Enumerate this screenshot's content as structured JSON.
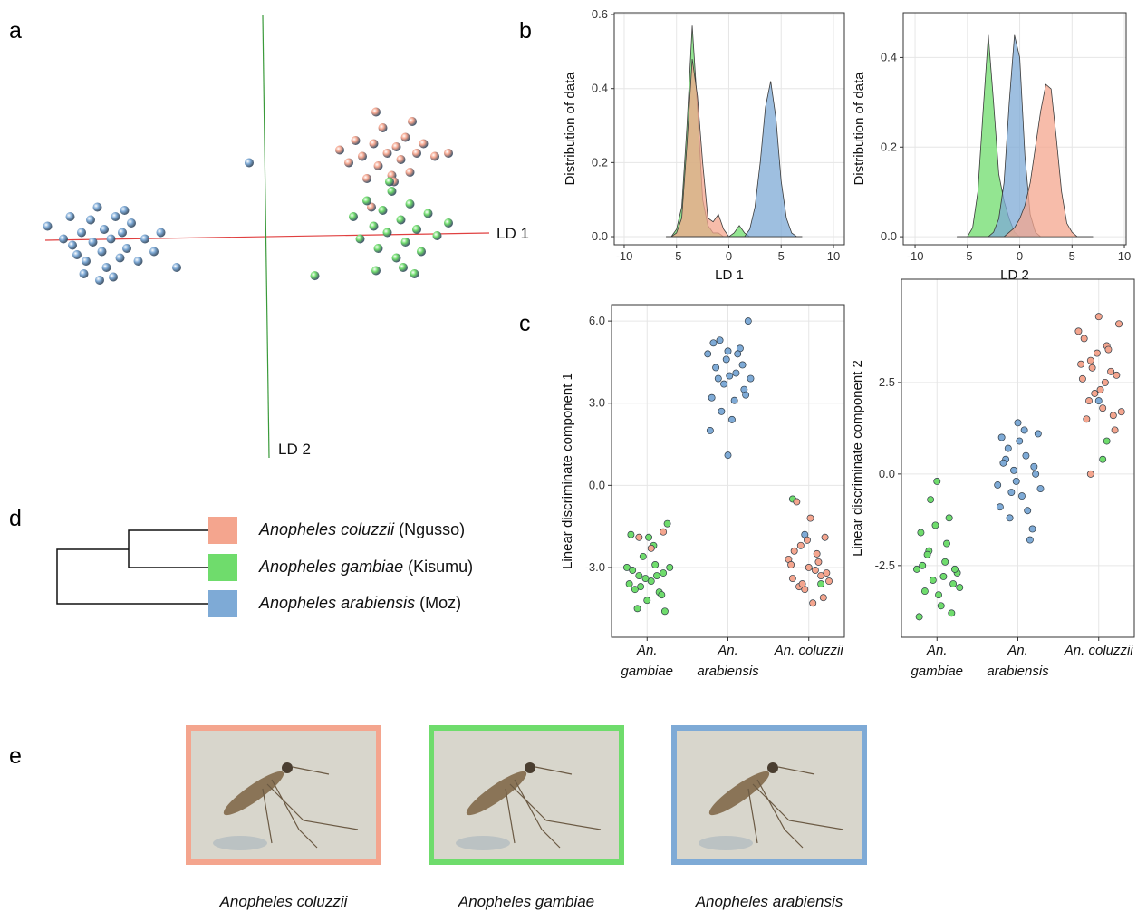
{
  "panel_labels": [
    "a",
    "b",
    "c",
    "d",
    "e"
  ],
  "chart_data": [
    {
      "type": "scatter",
      "xlabel": "LD 1",
      "ylabel": "LD 2",
      "xlim": [
        -10,
        10
      ],
      "ylim": [
        -6,
        8
      ],
      "series": [
        {
          "color": "#7eaad6",
          "x": [
            -9.5,
            -8.8,
            -8.5,
            -8.2,
            -8.0,
            -7.8,
            -7.6,
            -7.5,
            -7.3,
            -7.1,
            -7.0,
            -6.9,
            -6.7,
            -6.5,
            -6.3,
            -6.2,
            -6.0,
            -5.8,
            -5.5,
            -5.2,
            -4.8,
            -4.5,
            -7.9,
            -7.2,
            -6.6,
            -8.4,
            -6.1,
            -3.8,
            -0.6
          ],
          "values": [
            1.3,
            0.9,
            1.6,
            0.4,
            1.1,
            0.2,
            1.5,
            0.8,
            1.9,
            0.5,
            1.2,
            0.0,
            0.9,
            1.6,
            0.3,
            1.1,
            0.6,
            1.4,
            0.2,
            0.9,
            0.5,
            1.1,
            -0.2,
            -0.4,
            -0.3,
            0.7,
            1.8,
            0.0,
            3.3
          ]
        },
        {
          "color": "#f4a58e",
          "x": [
            3.4,
            3.8,
            4.1,
            4.4,
            4.6,
            4.9,
            5.1,
            5.3,
            5.5,
            5.7,
            5.9,
            6.1,
            6.3,
            6.5,
            6.8,
            7.1,
            7.6,
            8.2,
            5.0,
            5.8,
            6.6,
            4.8
          ],
          "values": [
            3.7,
            3.3,
            4.0,
            3.5,
            2.8,
            3.9,
            3.2,
            4.4,
            3.6,
            2.9,
            3.8,
            3.4,
            4.1,
            3.0,
            3.6,
            3.9,
            3.5,
            3.6,
            4.9,
            2.7,
            4.6,
            1.9
          ]
        },
        {
          "color": "#6fdc6c",
          "x": [
            2.3,
            4.0,
            4.3,
            4.6,
            4.9,
            5.1,
            5.3,
            5.5,
            5.7,
            5.9,
            6.1,
            6.3,
            6.5,
            6.8,
            7.0,
            7.3,
            7.7,
            8.2,
            5.0,
            5.6,
            6.2,
            6.7
          ],
          "values": [
            -0.26,
            1.6,
            0.9,
            2.1,
            1.3,
            0.6,
            1.8,
            1.1,
            2.4,
            0.3,
            1.5,
            0.8,
            2.0,
            1.2,
            0.5,
            1.7,
            1.0,
            1.4,
            -0.1,
            2.7,
            0.0,
            -0.2
          ]
        }
      ]
    },
    {
      "type": "density",
      "xlabel": "LD 1",
      "ylabel": "Distribution of data",
      "grid": true,
      "xlim": [
        -10.95,
        11.04
      ],
      "ylim": [
        -0.022,
        0.605
      ],
      "xticks": [
        -10,
        -5,
        0,
        5,
        10
      ],
      "yticks": [
        {
          "value": 0,
          "label": "0.0"
        },
        0.2,
        0.4,
        0.6
      ],
      "x": [
        -6,
        -5.5,
        -5,
        -4.5,
        -4,
        -3.5,
        -3,
        -2.5,
        -2,
        -1.5,
        -1,
        -0.5,
        0,
        0.5,
        1,
        1.5,
        2,
        2.5,
        3,
        3.5,
        4,
        4.5,
        5,
        5.5,
        6,
        6.5,
        7
      ],
      "series": [
        {
          "color": "#6fdc6c",
          "values": [
            0,
            0,
            0.02,
            0.08,
            0.3,
            0.57,
            0.35,
            0.1,
            0.03,
            0.01,
            0.01,
            0,
            0,
            0.01,
            0.03,
            0.01,
            0,
            0,
            0,
            0,
            0,
            0,
            0,
            0,
            0,
            0,
            0
          ]
        },
        {
          "color": "#f4a58e",
          "values": [
            0,
            0,
            0.01,
            0.05,
            0.25,
            0.48,
            0.38,
            0.2,
            0.05,
            0.04,
            0.06,
            0.02,
            0,
            0,
            0,
            0,
            0,
            0,
            0,
            0,
            0,
            0,
            0,
            0,
            0,
            0,
            0
          ]
        },
        {
          "color": "#7eaad6",
          "values": [
            0,
            0,
            0,
            0,
            0,
            0,
            0,
            0,
            0,
            0,
            0,
            0,
            0,
            0,
            0,
            0,
            0.02,
            0.08,
            0.2,
            0.35,
            0.42,
            0.32,
            0.15,
            0.05,
            0.01,
            0,
            0
          ]
        }
      ]
    },
    {
      "type": "density",
      "xlabel": "LD 2",
      "ylabel": "Distribution of data",
      "grid": true,
      "xlim": [
        -11.13,
        10.17
      ],
      "ylim": [
        -0.018,
        0.5
      ],
      "xticks": [
        -10,
        -5,
        0,
        5,
        10
      ],
      "yticks": [
        {
          "value": 0,
          "label": "0.0"
        },
        0.2,
        0.4
      ],
      "x": [
        -6,
        -5.5,
        -5,
        -4.5,
        -4,
        -3.5,
        -3,
        -2.5,
        -2,
        -1.5,
        -1,
        -0.5,
        0,
        0.5,
        1,
        1.5,
        2,
        2.5,
        3,
        3.5,
        4,
        4.5,
        5,
        5.5,
        6,
        6.5,
        7
      ],
      "series": [
        {
          "color": "#6fdc6c",
          "values": [
            0,
            0,
            0,
            0.02,
            0.1,
            0.28,
            0.45,
            0.3,
            0.14,
            0.08,
            0.04,
            0.01,
            0,
            0,
            0,
            0,
            0,
            0,
            0,
            0,
            0,
            0,
            0,
            0,
            0,
            0,
            0
          ]
        },
        {
          "color": "#7eaad6",
          "values": [
            0,
            0,
            0,
            0,
            0,
            0,
            0,
            0.01,
            0.04,
            0.12,
            0.3,
            0.45,
            0.4,
            0.18,
            0.05,
            0.01,
            0,
            0,
            0,
            0,
            0,
            0,
            0,
            0,
            0,
            0,
            0
          ]
        },
        {
          "color": "#f4a58e",
          "values": [
            0,
            0,
            0,
            0,
            0,
            0,
            0,
            0,
            0,
            0,
            0.01,
            0.02,
            0.04,
            0.07,
            0.12,
            0.2,
            0.28,
            0.34,
            0.33,
            0.22,
            0.1,
            0.03,
            0.01,
            0,
            0,
            0,
            0
          ]
        }
      ]
    },
    {
      "type": "strip",
      "ylabel": "Linear discriminate component 1",
      "grid": true,
      "xlim": [
        0.56,
        3.44
      ],
      "ylim": [
        -5.55,
        6.6
      ],
      "xticks": [
        {
          "value": 1,
          "label": "An. gambiae"
        },
        {
          "value": 2,
          "label": "An. arabiensis"
        },
        {
          "value": 3,
          "label": "An. coluzzii"
        }
      ],
      "yticks": [
        {
          "value": -3,
          "label": "-3.0"
        },
        {
          "value": 0,
          "label": "0.0"
        },
        {
          "value": 3,
          "label": "3.0"
        },
        {
          "value": 6,
          "label": "6.0"
        }
      ],
      "series": [
        {
          "color": "#6fdc6c",
          "x": [
            0.75,
            0.8,
            0.85,
            0.9,
            0.95,
            1.0,
            1.05,
            1.1,
            1.15,
            1.2,
            1.25,
            0.78,
            0.88,
            0.98,
            1.08,
            1.18,
            0.82,
            0.92,
            1.02,
            1.12,
            1.22,
            1.28,
            2.8,
            3.15
          ],
          "values": [
            -3.0,
            -1.8,
            -3.8,
            -3.3,
            -2.6,
            -4.2,
            -3.5,
            -2.9,
            -3.9,
            -3.2,
            -1.4,
            -3.6,
            -4.5,
            -3.4,
            -2.2,
            -4.0,
            -3.1,
            -3.7,
            -1.9,
            -3.3,
            -4.6,
            -3.0,
            -0.5,
            -3.6
          ]
        },
        {
          "color": "#7eaad6",
          "x": [
            1.75,
            1.8,
            1.85,
            1.9,
            1.95,
            2.0,
            2.05,
            2.1,
            2.15,
            2.2,
            2.25,
            1.78,
            1.88,
            1.98,
            2.08,
            2.18,
            1.82,
            1.92,
            2.02,
            2.12,
            2.22,
            2.28,
            2.0,
            2.95
          ],
          "values": [
            4.8,
            3.2,
            4.3,
            5.3,
            3.7,
            4.9,
            2.4,
            4.1,
            5.0,
            3.5,
            6.0,
            2.0,
            3.9,
            4.6,
            3.1,
            4.4,
            5.2,
            2.7,
            4.0,
            4.8,
            3.3,
            3.9,
            1.1,
            -1.8
          ]
        },
        {
          "color": "#f4a58e",
          "x": [
            2.75,
            2.8,
            2.85,
            2.9,
            2.95,
            3.0,
            3.05,
            3.1,
            3.15,
            3.2,
            3.25,
            2.78,
            2.88,
            2.98,
            3.08,
            3.18,
            2.82,
            2.92,
            3.02,
            3.12,
            3.22,
            1.2,
            1.05,
            0.9
          ],
          "values": [
            -2.7,
            -3.4,
            -0.6,
            -2.2,
            -3.8,
            -3.0,
            -4.3,
            -2.5,
            -3.3,
            -1.9,
            -3.5,
            -2.9,
            -3.7,
            -2.0,
            -3.1,
            -4.1,
            -2.4,
            -3.6,
            -1.2,
            -2.8,
            -3.2,
            -1.7,
            -2.3,
            -1.9
          ]
        }
      ]
    },
    {
      "type": "strip",
      "ylabel": "Linear discriminate component 2",
      "grid": true,
      "xlim": [
        0.56,
        3.44
      ],
      "ylim": [
        -4.46,
        5.32
      ],
      "xticks": [
        {
          "value": 1,
          "label": "An. gambiae"
        },
        {
          "value": 2,
          "label": "An. arabiensis"
        },
        {
          "value": 3,
          "label": "An. coluzzii"
        }
      ],
      "yticks": [
        -2.5,
        {
          "value": 0,
          "label": "0.0"
        },
        2.5
      ],
      "series": [
        {
          "color": "#6fdc6c",
          "x": [
            0.75,
            0.8,
            0.85,
            0.9,
            0.95,
            1.0,
            1.05,
            1.1,
            1.15,
            1.2,
            1.25,
            0.78,
            0.88,
            0.98,
            1.08,
            1.18,
            0.82,
            0.92,
            1.02,
            1.12,
            1.22,
            1.28,
            3.1,
            3.05
          ],
          "values": [
            -2.6,
            -1.6,
            -3.2,
            -2.1,
            -2.9,
            -0.2,
            -3.6,
            -2.4,
            -1.2,
            -3.0,
            -2.7,
            -3.9,
            -2.2,
            -1.4,
            -2.8,
            -3.8,
            -2.5,
            -0.7,
            -3.3,
            -1.9,
            -2.6,
            -3.1,
            0.9,
            0.4
          ]
        },
        {
          "color": "#7eaad6",
          "x": [
            1.75,
            1.8,
            1.85,
            1.9,
            1.95,
            2.0,
            2.05,
            2.1,
            2.15,
            2.2,
            2.25,
            1.78,
            1.88,
            1.98,
            2.08,
            2.18,
            1.82,
            1.92,
            2.02,
            2.12,
            2.22,
            2.28,
            3.0
          ],
          "values": [
            -0.3,
            1.0,
            0.4,
            -1.2,
            0.1,
            1.4,
            -0.6,
            0.5,
            -1.8,
            0.2,
            1.1,
            -0.9,
            0.7,
            -0.2,
            1.2,
            -1.5,
            0.3,
            -0.5,
            0.9,
            -1.0,
            0.0,
            -0.4,
            2.0
          ]
        },
        {
          "color": "#f4a58e",
          "x": [
            2.75,
            2.8,
            2.85,
            2.9,
            2.95,
            3.0,
            3.05,
            3.1,
            3.15,
            3.2,
            3.25,
            2.78,
            2.88,
            2.98,
            3.08,
            3.18,
            2.82,
            2.92,
            3.02,
            3.12,
            3.22,
            3.28,
            2.9
          ],
          "values": [
            3.9,
            2.6,
            1.5,
            3.1,
            2.2,
            4.3,
            1.8,
            3.5,
            2.8,
            1.2,
            4.1,
            3.0,
            2.0,
            3.3,
            2.5,
            1.6,
            3.7,
            2.9,
            2.3,
            3.4,
            2.7,
            1.7,
            0.0
          ]
        }
      ]
    }
  ],
  "legend": [
    {
      "species": "Anopheles coluzzii",
      "strain": "(Ngusso)",
      "color": "#f4a58e"
    },
    {
      "species": "Anopheles gambiae",
      "strain": "(Kisumu)",
      "color": "#6fdc6c"
    },
    {
      "species": "Anopheles arabiensis",
      "strain": "(Moz)",
      "color": "#7eaad6"
    }
  ],
  "photos": [
    {
      "caption": "Anopheles coluzzii",
      "color": "#f4a58e"
    },
    {
      "caption": "Anopheles gambiae",
      "color": "#6fdc6c"
    },
    {
      "caption": "Anopheles arabiensis",
      "color": "#7eaad6"
    }
  ]
}
